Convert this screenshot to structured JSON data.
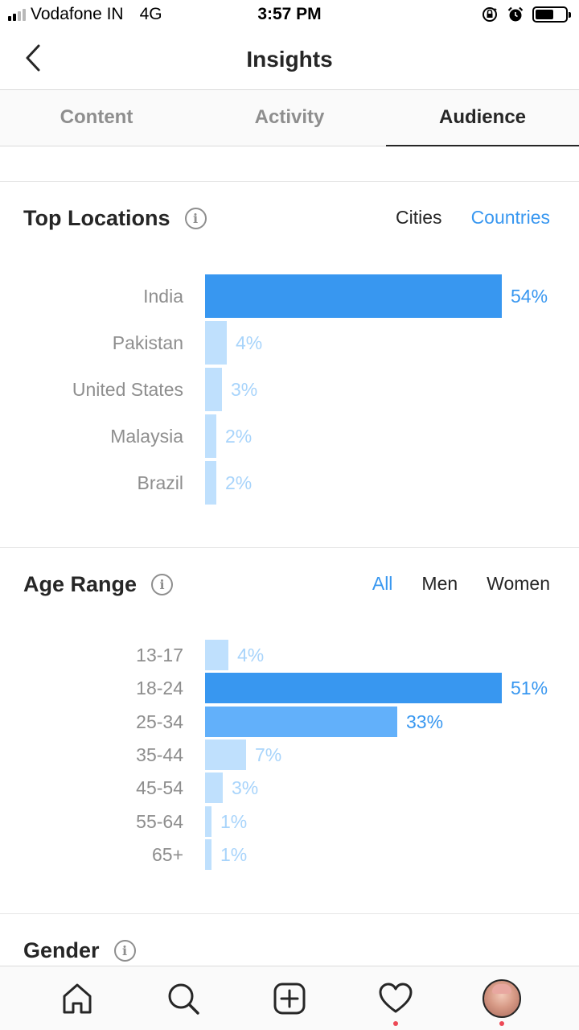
{
  "status": {
    "carrier": "Vodafone IN",
    "network": "4G",
    "time": "3:57 PM",
    "signal_bars_filled": 2,
    "signal_bars_total": 4,
    "icons": [
      "orientation-lock-icon",
      "alarm-icon",
      "battery-icon"
    ]
  },
  "header": {
    "title": "Insights",
    "back_icon": "chevron-left-icon"
  },
  "tabs": [
    {
      "label": "Content",
      "active": false
    },
    {
      "label": "Activity",
      "active": false
    },
    {
      "label": "Audience",
      "active": true
    }
  ],
  "locations": {
    "title": "Top Locations",
    "filters": [
      {
        "label": "Cities",
        "selected": false
      },
      {
        "label": "Countries",
        "selected": true
      }
    ],
    "chart_data": {
      "type": "bar",
      "orientation": "horizontal",
      "categories": [
        "India",
        "Pakistan",
        "United States",
        "Malaysia",
        "Brazil"
      ],
      "values": [
        54,
        4,
        3,
        2,
        2
      ],
      "value_labels": [
        "54%",
        "4%",
        "3%",
        "2%",
        "2%"
      ],
      "unit": "%",
      "highlight_index": 0
    }
  },
  "age": {
    "title": "Age Range",
    "filters": [
      {
        "label": "All",
        "selected": true
      },
      {
        "label": "Men",
        "selected": false
      },
      {
        "label": "Women",
        "selected": false
      }
    ],
    "chart_data": {
      "type": "bar",
      "orientation": "horizontal",
      "categories": [
        "13-17",
        "18-24",
        "25-34",
        "35-44",
        "45-54",
        "55-64",
        "65+"
      ],
      "values": [
        4,
        51,
        33,
        7,
        3,
        1,
        1
      ],
      "value_labels": [
        "4%",
        "51%",
        "33%",
        "7%",
        "3%",
        "1%",
        "1%"
      ],
      "unit": "%",
      "highlight_index": 1,
      "secondary_index": 2
    }
  },
  "gender": {
    "title": "Gender"
  },
  "colors": {
    "accent": "#3897f0",
    "bar_primary": "#3897f0",
    "bar_secondary": "#62b0fa",
    "bar_light": "#bfe0fd",
    "value_light": "#a8d4fb",
    "text": "#262626",
    "muted": "#8e8e8e"
  },
  "bottom_nav": [
    {
      "icon": "home-icon"
    },
    {
      "icon": "search-icon"
    },
    {
      "icon": "new-post-icon"
    },
    {
      "icon": "heart-icon",
      "notification": true
    },
    {
      "icon": "profile-avatar",
      "notification": true
    }
  ]
}
